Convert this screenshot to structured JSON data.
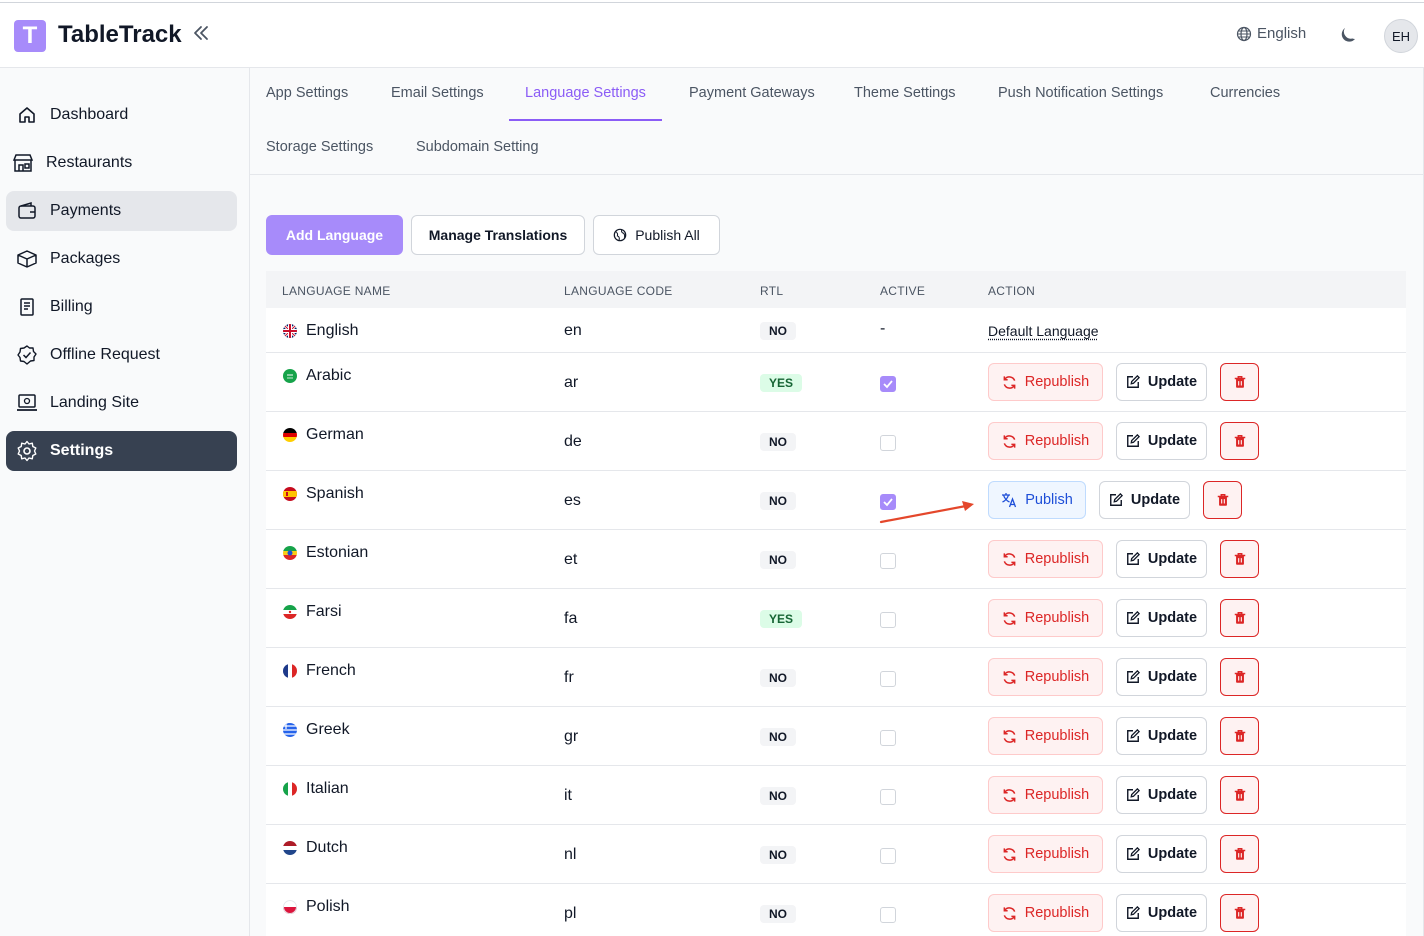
{
  "app": {
    "logo_letter": "T",
    "title": "TableTrack"
  },
  "header": {
    "language": "English",
    "avatar_initials": "EH"
  },
  "sidebar": {
    "items": [
      {
        "label": "Dashboard",
        "icon": "home-icon"
      },
      {
        "label": "Restaurants",
        "icon": "store-icon"
      },
      {
        "label": "Payments",
        "icon": "wallet-icon"
      },
      {
        "label": "Packages",
        "icon": "package-icon"
      },
      {
        "label": "Billing",
        "icon": "receipt-icon"
      },
      {
        "label": "Offline Request",
        "icon": "badge-check-icon"
      },
      {
        "label": "Landing Site",
        "icon": "monitor-icon"
      },
      {
        "label": "Settings",
        "icon": "gear-icon"
      }
    ]
  },
  "tabs": [
    "App Settings",
    "Email Settings",
    "Language Settings",
    "Payment Gateways",
    "Theme Settings",
    "Push Notification Settings",
    "Currencies",
    "Storage Settings",
    "Subdomain Setting"
  ],
  "active_tab": "Language Settings",
  "toolbar": {
    "add_language": "Add Language",
    "manage_translations": "Manage Translations",
    "publish_all": "Publish All"
  },
  "table": {
    "headers": {
      "name": "LANGUAGE NAME",
      "code": "LANGUAGE CODE",
      "rtl": "RTL",
      "active": "ACTIVE",
      "action": "ACTION"
    },
    "default_row": {
      "name": "English",
      "code": "en",
      "rtl": "NO",
      "active": "-",
      "action": "Default Language"
    },
    "rows": [
      {
        "name": "Arabic",
        "code": "ar",
        "rtl": "YES",
        "active": true,
        "action": "Republish"
      },
      {
        "name": "German",
        "code": "de",
        "rtl": "NO",
        "active": false,
        "action": "Republish"
      },
      {
        "name": "Spanish",
        "code": "es",
        "rtl": "NO",
        "active": true,
        "action": "Publish"
      },
      {
        "name": "Estonian",
        "code": "et",
        "rtl": "NO",
        "active": false,
        "action": "Republish"
      },
      {
        "name": "Farsi",
        "code": "fa",
        "rtl": "YES",
        "active": false,
        "action": "Republish"
      },
      {
        "name": "French",
        "code": "fr",
        "rtl": "NO",
        "active": false,
        "action": "Republish"
      },
      {
        "name": "Greek",
        "code": "gr",
        "rtl": "NO",
        "active": false,
        "action": "Republish"
      },
      {
        "name": "Italian",
        "code": "it",
        "rtl": "NO",
        "active": false,
        "action": "Republish"
      },
      {
        "name": "Dutch",
        "code": "nl",
        "rtl": "NO",
        "active": false,
        "action": "Republish"
      },
      {
        "name": "Polish",
        "code": "pl",
        "rtl": "NO",
        "active": false,
        "action": "Republish"
      }
    ],
    "update_label": "Update"
  },
  "colors": {
    "accent": "#a78bfa",
    "danger": "#dc2626",
    "arrow": "#e4472b"
  }
}
